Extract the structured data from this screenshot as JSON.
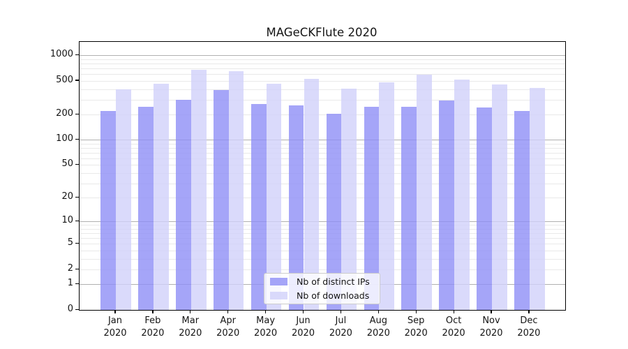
{
  "chart_data": {
    "type": "bar",
    "title": "MAGeCKFlute 2020",
    "categories": [
      "Jan 2020",
      "Feb 2020",
      "Mar 2020",
      "Apr 2020",
      "May 2020",
      "Jun 2020",
      "Jul 2020",
      "Aug 2020",
      "Sep 2020",
      "Oct 2020",
      "Nov 2020",
      "Dec 2020"
    ],
    "series": [
      {
        "name": "Nb of distinct IPs",
        "color": "#8f8ff6",
        "opacity": 0.8,
        "values": [
          220,
          245,
          300,
          388,
          268,
          258,
          205,
          248,
          245,
          293,
          240,
          219
        ]
      },
      {
        "name": "Nb of downloads",
        "color": "#d1d1fa",
        "opacity": 0.8,
        "values": [
          395,
          462,
          670,
          650,
          462,
          532,
          404,
          479,
          593,
          522,
          450,
          414
        ]
      }
    ],
    "y_scale": "log1p",
    "ylim": [
      0,
      1440
    ],
    "y_ticks": [
      0,
      1,
      2,
      5,
      10,
      20,
      50,
      100,
      200,
      500,
      1000
    ],
    "y_major_gridlines": [
      1,
      10,
      100,
      1000
    ],
    "y_minor_gridlines": [
      2,
      3,
      4,
      5,
      6,
      7,
      8,
      9,
      20,
      30,
      40,
      50,
      60,
      70,
      80,
      90,
      200,
      300,
      400,
      500,
      600,
      700,
      800,
      900
    ],
    "grid": true,
    "legend_position": "lower center",
    "colors": {
      "major_grid": "#b0b0b0",
      "minor_grid": "#e9e9e9",
      "axis": "#000000",
      "text": "#151515",
      "background": "#ffffff"
    }
  }
}
